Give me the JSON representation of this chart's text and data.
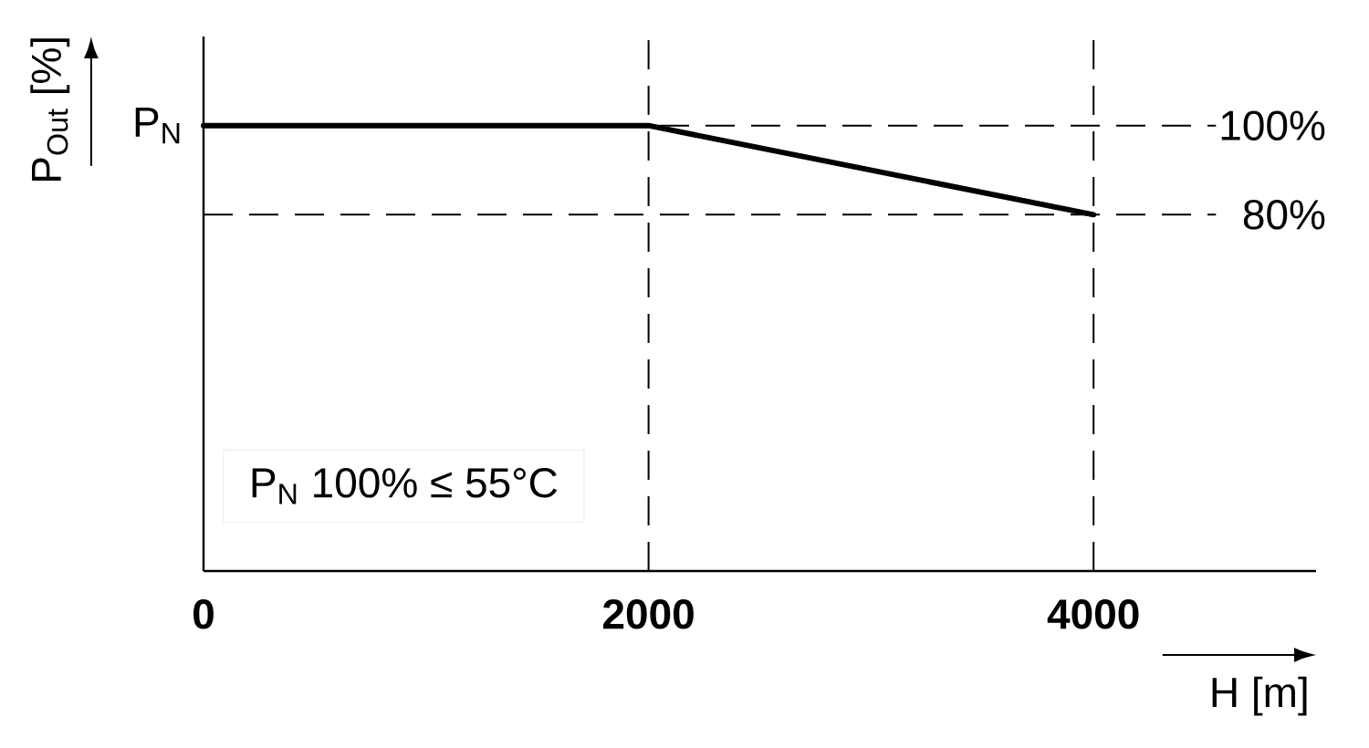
{
  "chart_data": {
    "type": "line",
    "xlabel": "H [m]",
    "ylabel": "P$_{Out}$ [%]",
    "x": [
      0,
      2000,
      4000
    ],
    "series": [
      {
        "color": "#000000",
        "values": [
          100,
          100,
          80
        ],
        "axis": "y2"
      }
    ],
    "xlim": [
      0,
      5000
    ],
    "y2lim": [
      0,
      120
    ],
    "xticks": [
      0,
      2000,
      4000
    ],
    "y2ticks": [
      {
        "value": 100,
        "label": "100%"
      },
      {
        "value": 80,
        "label": "80%"
      }
    ],
    "ref_lines": [
      {
        "axis": "x",
        "value": 2000,
        "line_style": "dashed"
      },
      {
        "axis": "x",
        "value": 4000,
        "line_style": "dashed"
      },
      {
        "axis": "y2",
        "value": 100,
        "line_style": "dashed"
      },
      {
        "axis": "y2",
        "value": 80,
        "line_style": "dashed"
      }
    ],
    "annotations": [
      "P$_{N}$",
      "P$_{N}$ 100% ≤ 55°C"
    ]
  }
}
